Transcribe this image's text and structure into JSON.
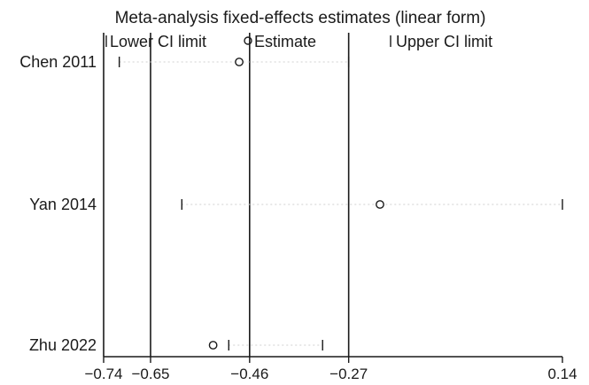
{
  "chart_data": {
    "type": "scatter",
    "title": "Meta-analysis fixed-effects estimates (linear form)",
    "legend": {
      "lower": "Lower CI limit",
      "estimate": "Estimate",
      "upper": "Upper CI limit"
    },
    "xlim": [
      -0.74,
      0.14
    ],
    "x_ticks": [
      -0.74,
      -0.65,
      -0.46,
      -0.27,
      0.14
    ],
    "x_tick_labels": [
      "−0.74",
      "−0.65",
      "−0.46",
      "−0.27",
      "0.14"
    ],
    "reference_lines": [
      -0.65,
      -0.46,
      -0.27
    ],
    "studies": [
      {
        "name": "Chen 2011",
        "lower": -0.71,
        "estimate": -0.48,
        "upper": -0.27
      },
      {
        "name": "Yan 2014",
        "lower": -0.59,
        "estimate": -0.21,
        "upper": 0.14
      },
      {
        "name": "Zhu 2022",
        "lower": -0.5,
        "estimate": -0.53,
        "upper": -0.32
      }
    ]
  }
}
